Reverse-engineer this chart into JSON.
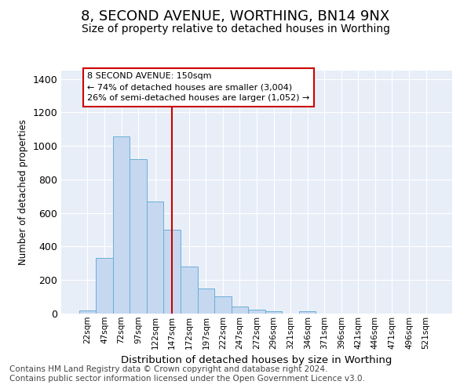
{
  "title1": "8, SECOND AVENUE, WORTHING, BN14 9NX",
  "title2": "Size of property relative to detached houses in Worthing",
  "xlabel": "Distribution of detached houses by size in Worthing",
  "ylabel": "Number of detached properties",
  "categories": [
    "22sqm",
    "47sqm",
    "72sqm",
    "97sqm",
    "122sqm",
    "147sqm",
    "172sqm",
    "197sqm",
    "222sqm",
    "247sqm",
    "272sqm",
    "296sqm",
    "321sqm",
    "346sqm",
    "371sqm",
    "396sqm",
    "421sqm",
    "446sqm",
    "471sqm",
    "496sqm",
    "521sqm"
  ],
  "values": [
    20,
    333,
    1055,
    920,
    668,
    500,
    282,
    150,
    103,
    40,
    22,
    15,
    0,
    12,
    0,
    0,
    0,
    0,
    0,
    0,
    0
  ],
  "bar_color": "#c5d8f0",
  "bar_edge_color": "#6baed6",
  "vline_x_idx": 5,
  "vline_color": "#cc0000",
  "annotation_text": "8 SECOND AVENUE: 150sqm\n← 74% of detached houses are smaller (3,004)\n26% of semi-detached houses are larger (1,052) →",
  "annotation_box_color": "#cc0000",
  "ylim": [
    0,
    1450
  ],
  "yticks": [
    0,
    200,
    400,
    600,
    800,
    1000,
    1200,
    1400
  ],
  "background_color": "#ffffff",
  "plot_background": "#e8eef8",
  "grid_color": "#ffffff",
  "title1_fontsize": 13,
  "title2_fontsize": 10,
  "footnote_fontsize": 7.5,
  "footnote": "Contains HM Land Registry data © Crown copyright and database right 2024.\nContains public sector information licensed under the Open Government Licence v3.0."
}
